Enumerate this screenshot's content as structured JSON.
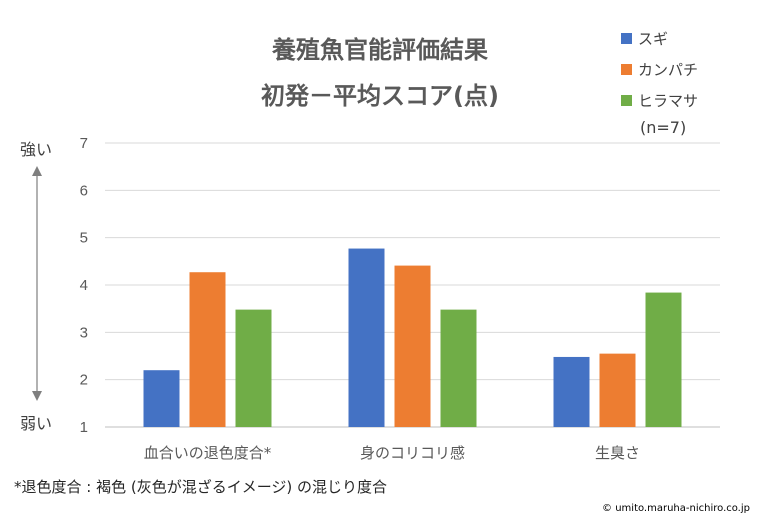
{
  "chart_data": {
    "type": "bar",
    "title": [
      "養殖魚官能評価結果",
      "初発－平均スコア(点)"
    ],
    "categories": [
      "血合いの退色度合*",
      "身のコリコリ感",
      "生臭さ"
    ],
    "series": [
      {
        "name": "スギ",
        "color": "#4472C4",
        "values": [
          2.2,
          4.77,
          2.48
        ]
      },
      {
        "name": "カンパチ",
        "color": "#ED7D31",
        "values": [
          4.27,
          4.41,
          2.55
        ]
      },
      {
        "name": "ヒラマサ",
        "color": "#70AD47",
        "values": [
          3.48,
          3.48,
          3.84
        ]
      }
    ],
    "ylim": [
      1,
      7
    ],
    "yticks": [
      "1",
      "2",
      "3",
      "4",
      "5",
      "6",
      "7"
    ],
    "grid": true,
    "legend_position": "top-right",
    "sample_size": "(n=7)",
    "axis_strong_label": "強い",
    "axis_weak_label": "弱い"
  },
  "footnote": "*退色度合 : 褐色 (灰色が混ざるイメージ) の混じり度合",
  "credit": "© umito.maruha-nichiro.co.jp"
}
